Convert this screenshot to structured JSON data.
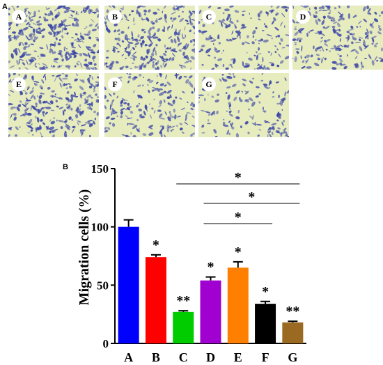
{
  "panel_a_label": "A",
  "panel_b_label": "B",
  "micrographs": [
    {
      "label": "A",
      "density": 0.95
    },
    {
      "label": "B",
      "density": 0.8
    },
    {
      "label": "C",
      "density": 0.4
    },
    {
      "label": "D",
      "density": 0.55
    },
    {
      "label": "E",
      "density": 0.7
    },
    {
      "label": "F",
      "density": 0.45
    },
    {
      "label": "G",
      "density": 0.3
    }
  ],
  "colors": {
    "micro_bg": "#e7ecbf",
    "stain": "#3b47a8"
  },
  "chart_data": {
    "type": "bar",
    "categories": [
      "A",
      "B",
      "C",
      "D",
      "E",
      "F",
      "G"
    ],
    "values": [
      100,
      74,
      27,
      54,
      65,
      34,
      18
    ],
    "errors": [
      6,
      2,
      1,
      3,
      5,
      2,
      1
    ],
    "colors": [
      "#0000ff",
      "#ff0000",
      "#00cc00",
      "#a000d0",
      "#ff8000",
      "#000000",
      "#9a6a22"
    ],
    "bar_annotations": [
      "",
      "*",
      "**",
      "*",
      "*",
      "*",
      "**"
    ],
    "ylabel": "Migration cells (%)",
    "xlabel": "",
    "ylim": [
      0,
      150
    ],
    "yticks": [
      0,
      50,
      100,
      150
    ],
    "grid": false,
    "comparisons": [
      {
        "from": "C",
        "to": "G",
        "label": "*"
      },
      {
        "from": "D",
        "to": "G",
        "label": "*"
      },
      {
        "from": "D",
        "to": "F",
        "label": "*"
      }
    ]
  }
}
